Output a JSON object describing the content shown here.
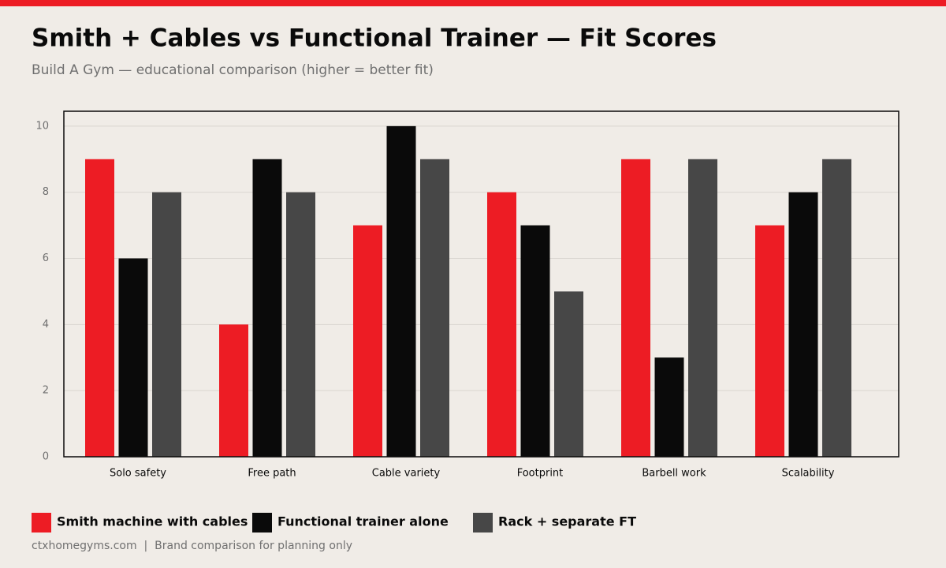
{
  "chart_data": {
    "type": "bar",
    "title": "Smith + Cables vs Functional Trainer — Fit Scores",
    "subtitle": "Build A Gym — educational comparison (higher = better fit)",
    "categories": [
      "Solo safety",
      "Free path",
      "Cable variety",
      "Footprint",
      "Barbell work",
      "Scalability"
    ],
    "series": [
      {
        "name": "Smith machine with cables",
        "color": "#ed1c24",
        "values": [
          9,
          4,
          7,
          8,
          9,
          7
        ]
      },
      {
        "name": "Functional trainer alone",
        "color": "#0a0a0a",
        "values": [
          6,
          9,
          10,
          7,
          3,
          8
        ]
      },
      {
        "name": "Rack + separate FT",
        "color": "#474747",
        "values": [
          8,
          8,
          9,
          5,
          9,
          9
        ]
      }
    ],
    "ylim": [
      0,
      10.45
    ],
    "yticks": [
      0,
      2,
      4,
      6,
      8,
      10
    ],
    "grid": true,
    "legend": "bottom",
    "footer": "ctxhomegyms.com  |  Brand comparison for planning only"
  }
}
